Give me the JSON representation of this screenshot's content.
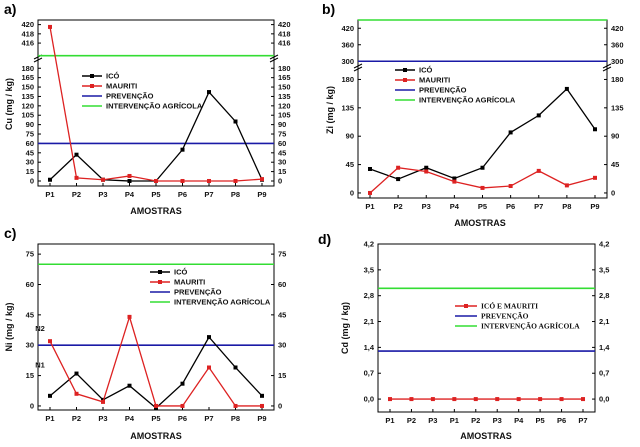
{
  "colors": {
    "ico": "#000000",
    "mauriti": "#dd2222",
    "prevencao": "#1a1aa6",
    "intervencao": "#33dd33"
  },
  "chart_data": [
    {
      "type": "line",
      "panel_label": "a)",
      "xlabel": "AMOSTRAS",
      "ylabel": "Cu (mg / kg)",
      "categories": [
        "P1",
        "P2",
        "P3",
        "P4",
        "P5",
        "P6",
        "P7",
        "P8",
        "P9"
      ],
      "y_axis_break": true,
      "ylim_lower": [
        -8,
        190
      ],
      "ylim_upper": [
        414.5,
        421
      ],
      "yticks": [
        0,
        15,
        30,
        45,
        60,
        75,
        90,
        105,
        120,
        135,
        150,
        165,
        180,
        416,
        418,
        420
      ],
      "grid": false,
      "legend_position": "top-right",
      "series": [
        {
          "name": "ICÓ",
          "color": "#000000",
          "marker": "square",
          "values": [
            2,
            42,
            2,
            0,
            0,
            50,
            142,
            95,
            2
          ]
        },
        {
          "name": "MAURITI",
          "color": "#dd2222",
          "marker": "square",
          "values": [
            419.5,
            5,
            2,
            8,
            0,
            0,
            0,
            0,
            3
          ]
        },
        {
          "name": "PREVENÇÃO",
          "color": "#1a1aa6",
          "reference_line": 60
        },
        {
          "name": "INTERVENÇÃO AGRÍCOLA",
          "color": "#33dd33",
          "reference_line": 200
        }
      ]
    },
    {
      "type": "line",
      "panel_label": "b)",
      "xlabel": "AMOSTRAS",
      "ylabel": "Zi (mg / kg)",
      "categories": [
        "P1",
        "P2",
        "P3",
        "P4",
        "P5",
        "P6",
        "P7",
        "P8",
        "P9"
      ],
      "y_axis_break": true,
      "ylim_lower": [
        -8,
        195
      ],
      "ylim_upper": [
        290,
        450
      ],
      "yticks": [
        0,
        45,
        90,
        135,
        180,
        300,
        360,
        420
      ],
      "grid": false,
      "legend_position": "top-left",
      "series": [
        {
          "name": "ICÓ",
          "color": "#000000",
          "marker": "square",
          "values": [
            38,
            22,
            40,
            23,
            40,
            96,
            123,
            165,
            101
          ]
        },
        {
          "name": "MAURITI",
          "color": "#dd2222",
          "marker": "square",
          "values": [
            0,
            40,
            34,
            18,
            8,
            11,
            35,
            12,
            24
          ]
        },
        {
          "name": "PREVENÇÃO",
          "color": "#1a1aa6",
          "reference_line": 300
        },
        {
          "name": "INTERVENÇÃO AGRÍCOLA",
          "color": "#33dd33",
          "reference_line": 450
        }
      ]
    },
    {
      "type": "line",
      "panel_label": "c)",
      "xlabel": "AMOSTRAS",
      "ylabel": "Ni (mg / kg)",
      "categories": [
        "P1",
        "P2",
        "P3",
        "P4",
        "P5",
        "P6",
        "P7",
        "P8",
        "P9"
      ],
      "ylim": [
        -2,
        80
      ],
      "yticks": [
        0,
        15,
        30,
        45,
        60,
        75
      ],
      "grid": false,
      "legend_position": "top-right",
      "annotations": [
        {
          "text": "N2",
          "x": "P1",
          "y": 37
        },
        {
          "text": "N1",
          "x": "P1",
          "y": 19
        }
      ],
      "series": [
        {
          "name": "ICÓ",
          "color": "#000000",
          "marker": "square",
          "values": [
            5,
            16,
            3,
            10,
            -1,
            11,
            34,
            19,
            5
          ]
        },
        {
          "name": "MAURITI",
          "color": "#dd2222",
          "marker": "square",
          "values": [
            32,
            6,
            2,
            44,
            0,
            0,
            19,
            0,
            0
          ]
        },
        {
          "name": "PREVENÇÃO",
          "color": "#1a1aa6",
          "reference_line": 30
        },
        {
          "name": "INTERVENÇÃO AGRÍCOLA",
          "color": "#33dd33",
          "reference_line": 70
        }
      ]
    },
    {
      "type": "line",
      "panel_label": "d)",
      "xlabel": "AMOSTRAS",
      "ylabel": "Cd (mg / kg)",
      "categories": [
        "P1",
        "P2",
        "P3",
        "P1",
        "P2",
        "P3",
        "P4",
        "P5",
        "P6",
        "P7"
      ],
      "ylim": [
        -0.35,
        4.2
      ],
      "yticks": [
        "0,0",
        "0,7",
        "1,4",
        "2,1",
        "2,8",
        "3,5",
        "4,2"
      ],
      "grid": false,
      "legend_position": "center-right",
      "series": [
        {
          "name": "ICÓ E MAURITI",
          "color": "#dd2222",
          "marker": "square",
          "values": [
            0,
            0,
            0,
            0,
            0,
            0,
            0,
            0,
            0,
            0
          ]
        },
        {
          "name": "PREVENÇÃO",
          "color": "#1a1aa6",
          "reference_line": 1.3
        },
        {
          "name": "INTERVENÇÃO AGRÍCOLA",
          "color": "#33dd33",
          "reference_line": 3.0
        }
      ]
    }
  ]
}
